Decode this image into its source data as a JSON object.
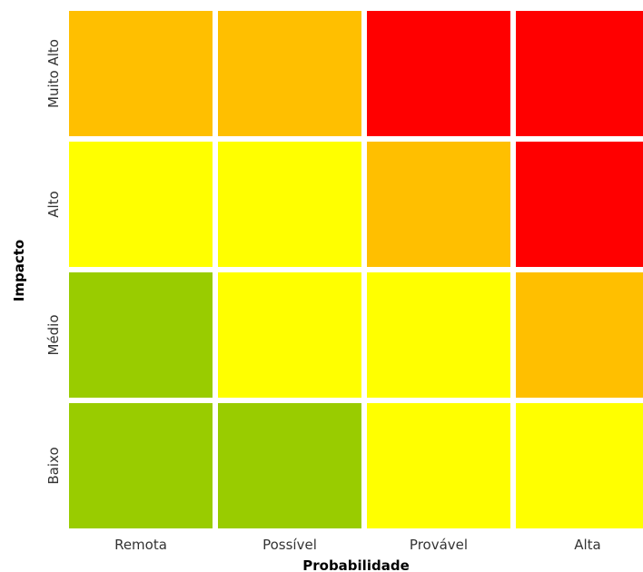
{
  "chart_data": {
    "type": "heatmap",
    "title": "",
    "xlabel": "Probabilidade",
    "ylabel": "Impacto",
    "x_categories": [
      "Remota",
      "Possível",
      "Provável",
      "Alta"
    ],
    "y_categories": [
      "Baixo",
      "Médio",
      "Alto",
      "Muito Alto"
    ],
    "level_colors": {
      "low": "#99cc00",
      "medium": "#ffff00",
      "high": "#ffbf00",
      "critical": "#ff0000"
    },
    "cells": [
      [
        "low",
        "low",
        "medium",
        "medium"
      ],
      [
        "low",
        "medium",
        "medium",
        "high"
      ],
      [
        "medium",
        "medium",
        "high",
        "critical"
      ],
      [
        "high",
        "high",
        "critical",
        "critical"
      ]
    ]
  }
}
